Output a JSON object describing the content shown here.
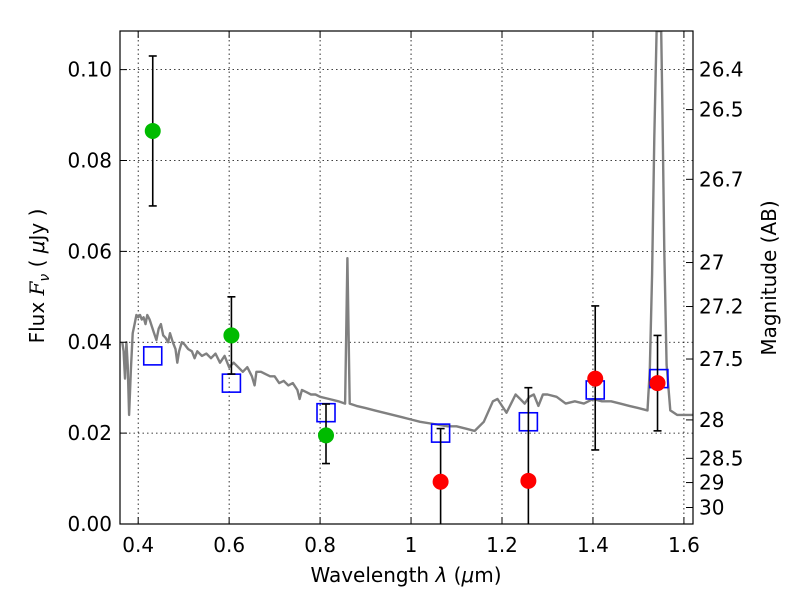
{
  "chart_data": {
    "type": "scatter",
    "xlabel": "Wavelength  λ (μm)",
    "ylabel": "Flux  F_ν  ( μJy )",
    "ylabel_parts": {
      "pre": "Flux  ",
      "var": "F",
      "sub": "ν",
      "post": "  ( ",
      "mu": "μ",
      "unit": "Jy )"
    },
    "xlabel_parts": {
      "pre": "Wavelength  ",
      "var": "λ",
      "post": " (",
      "mu": "μ",
      "unit": "m)"
    },
    "y2label": "Magnitude (AB)",
    "xlim": [
      0.36,
      1.62
    ],
    "ylim": [
      0.0,
      0.1085
    ],
    "grid": true,
    "x_ticks": [
      {
        "value": 0.4,
        "label": "0.4"
      },
      {
        "value": 0.6,
        "label": "0.6"
      },
      {
        "value": 0.8,
        "label": "0.8"
      },
      {
        "value": 1.0,
        "label": "1"
      },
      {
        "value": 1.2,
        "label": "1.2"
      },
      {
        "value": 1.4,
        "label": "1.4"
      },
      {
        "value": 1.6,
        "label": "1.6"
      }
    ],
    "y_ticks": [
      {
        "value": 0.0,
        "label": "0.00"
      },
      {
        "value": 0.02,
        "label": "0.02"
      },
      {
        "value": 0.04,
        "label": "0.04"
      },
      {
        "value": 0.06,
        "label": "0.06"
      },
      {
        "value": 0.08,
        "label": "0.08"
      },
      {
        "value": 0.1,
        "label": "0.10"
      }
    ],
    "magnitude_ticks": [
      {
        "value": 26.4,
        "label": "26.4"
      },
      {
        "value": 26.5,
        "label": "26.5"
      },
      {
        "value": 26.7,
        "label": "26.7"
      },
      {
        "value": 27.0,
        "label": "27"
      },
      {
        "value": 27.2,
        "label": "27.2"
      },
      {
        "value": 27.5,
        "label": "27.5"
      },
      {
        "value": 28.0,
        "label": "28"
      },
      {
        "value": 28.5,
        "label": "28.5"
      },
      {
        "value": 29.0,
        "label": "29"
      },
      {
        "value": 30.0,
        "label": "30"
      }
    ],
    "series": [
      {
        "type": "line",
        "color": "#808080",
        "points": [
          [
            0.365,
            0.04
          ],
          [
            0.368,
            0.038
          ],
          [
            0.371,
            0.032
          ],
          [
            0.374,
            0.04
          ],
          [
            0.377,
            0.035
          ],
          [
            0.38,
            0.024
          ],
          [
            0.384,
            0.034
          ],
          [
            0.388,
            0.042
          ],
          [
            0.392,
            0.044
          ],
          [
            0.396,
            0.046
          ],
          [
            0.4,
            0.0455
          ],
          [
            0.404,
            0.046
          ],
          [
            0.408,
            0.045
          ],
          [
            0.412,
            0.0455
          ],
          [
            0.416,
            0.044
          ],
          [
            0.42,
            0.046
          ],
          [
            0.425,
            0.045
          ],
          [
            0.43,
            0.0435
          ],
          [
            0.435,
            0.042
          ],
          [
            0.44,
            0.0405
          ],
          [
            0.445,
            0.043
          ],
          [
            0.45,
            0.044
          ],
          [
            0.455,
            0.0415
          ],
          [
            0.46,
            0.041
          ],
          [
            0.466,
            0.04
          ],
          [
            0.47,
            0.042
          ],
          [
            0.476,
            0.04
          ],
          [
            0.482,
            0.0385
          ],
          [
            0.486,
            0.0355
          ],
          [
            0.49,
            0.038
          ],
          [
            0.496,
            0.04
          ],
          [
            0.502,
            0.0395
          ],
          [
            0.51,
            0.0385
          ],
          [
            0.518,
            0.038
          ],
          [
            0.524,
            0.0365
          ],
          [
            0.53,
            0.038
          ],
          [
            0.54,
            0.037
          ],
          [
            0.55,
            0.0375
          ],
          [
            0.56,
            0.0365
          ],
          [
            0.57,
            0.0375
          ],
          [
            0.58,
            0.0355
          ],
          [
            0.59,
            0.037
          ],
          [
            0.6,
            0.0345
          ],
          [
            0.61,
            0.0355
          ],
          [
            0.62,
            0.0345
          ],
          [
            0.63,
            0.0335
          ],
          [
            0.64,
            0.0345
          ],
          [
            0.65,
            0.0325
          ],
          [
            0.656,
            0.0305
          ],
          [
            0.66,
            0.0335
          ],
          [
            0.67,
            0.0335
          ],
          [
            0.68,
            0.033
          ],
          [
            0.69,
            0.0325
          ],
          [
            0.7,
            0.0325
          ],
          [
            0.71,
            0.031
          ],
          [
            0.72,
            0.0315
          ],
          [
            0.73,
            0.0305
          ],
          [
            0.74,
            0.031
          ],
          [
            0.75,
            0.0295
          ],
          [
            0.755,
            0.0275
          ],
          [
            0.76,
            0.0295
          ],
          [
            0.77,
            0.029
          ],
          [
            0.78,
            0.0285
          ],
          [
            0.79,
            0.0285
          ],
          [
            0.8,
            0.028
          ],
          [
            0.82,
            0.0275
          ],
          [
            0.84,
            0.027
          ],
          [
            0.855,
            0.0265
          ],
          [
            0.86,
            0.0585
          ],
          [
            0.865,
            0.0265
          ],
          [
            0.88,
            0.026
          ],
          [
            0.9,
            0.0255
          ],
          [
            0.92,
            0.025
          ],
          [
            0.94,
            0.0245
          ],
          [
            0.96,
            0.024
          ],
          [
            0.98,
            0.0235
          ],
          [
            1.0,
            0.023
          ],
          [
            1.02,
            0.0225
          ],
          [
            1.05,
            0.022
          ],
          [
            1.08,
            0.0215
          ],
          [
            1.1,
            0.0215
          ],
          [
            1.12,
            0.021
          ],
          [
            1.14,
            0.0205
          ],
          [
            1.16,
            0.0225
          ],
          [
            1.18,
            0.027
          ],
          [
            1.19,
            0.0275
          ],
          [
            1.2,
            0.026
          ],
          [
            1.21,
            0.0245
          ],
          [
            1.22,
            0.0265
          ],
          [
            1.23,
            0.0285
          ],
          [
            1.24,
            0.0275
          ],
          [
            1.25,
            0.0265
          ],
          [
            1.26,
            0.028
          ],
          [
            1.27,
            0.0285
          ],
          [
            1.28,
            0.026
          ],
          [
            1.29,
            0.0285
          ],
          [
            1.3,
            0.0285
          ],
          [
            1.32,
            0.028
          ],
          [
            1.34,
            0.0265
          ],
          [
            1.36,
            0.027
          ],
          [
            1.38,
            0.0265
          ],
          [
            1.4,
            0.0275
          ],
          [
            1.42,
            0.027
          ],
          [
            1.44,
            0.027
          ],
          [
            1.46,
            0.0265
          ],
          [
            1.48,
            0.026
          ],
          [
            1.5,
            0.0255
          ],
          [
            1.52,
            0.025
          ],
          [
            1.525,
            0.034
          ],
          [
            1.53,
            0.055
          ],
          [
            1.535,
            0.085
          ],
          [
            1.54,
            0.1085
          ],
          [
            1.55,
            0.1085
          ],
          [
            1.553,
            0.09
          ],
          [
            1.557,
            0.06
          ],
          [
            1.562,
            0.035
          ],
          [
            1.57,
            0.025
          ],
          [
            1.585,
            0.024
          ],
          [
            1.6,
            0.024
          ],
          [
            1.62,
            0.024
          ]
        ]
      },
      {
        "type": "markers",
        "marker": "open-square",
        "color": "#0000ff",
        "points": [
          [
            0.432,
            0.037
          ],
          [
            0.605,
            0.031
          ],
          [
            0.813,
            0.0245
          ],
          [
            1.065,
            0.02
          ],
          [
            1.258,
            0.0225
          ],
          [
            1.405,
            0.0295
          ],
          [
            1.545,
            0.032
          ]
        ]
      },
      {
        "type": "markers",
        "marker": "filled-circle",
        "color": "#00bb00",
        "points": [
          {
            "x": 0.432,
            "y": 0.0865,
            "yerr_low": 0.07,
            "yerr_high": 0.103
          },
          {
            "x": 0.605,
            "y": 0.0415,
            "yerr_low": 0.033,
            "yerr_high": 0.05
          },
          {
            "x": 0.813,
            "y": 0.0195,
            "yerr_low": 0.0133,
            "yerr_high": 0.0264
          }
        ]
      },
      {
        "type": "markers",
        "marker": "filled-circle",
        "color": "#ff0000",
        "points": [
          {
            "x": 1.065,
            "y": 0.0093,
            "yerr_low": 0.0,
            "yerr_high": 0.021
          },
          {
            "x": 1.258,
            "y": 0.0095,
            "yerr_low": 0.0,
            "yerr_high": 0.03
          },
          {
            "x": 1.405,
            "y": 0.032,
            "yerr_low": 0.0163,
            "yerr_high": 0.048
          },
          {
            "x": 1.542,
            "y": 0.031,
            "yerr_low": 0.0205,
            "yerr_high": 0.0415
          }
        ]
      }
    ]
  }
}
